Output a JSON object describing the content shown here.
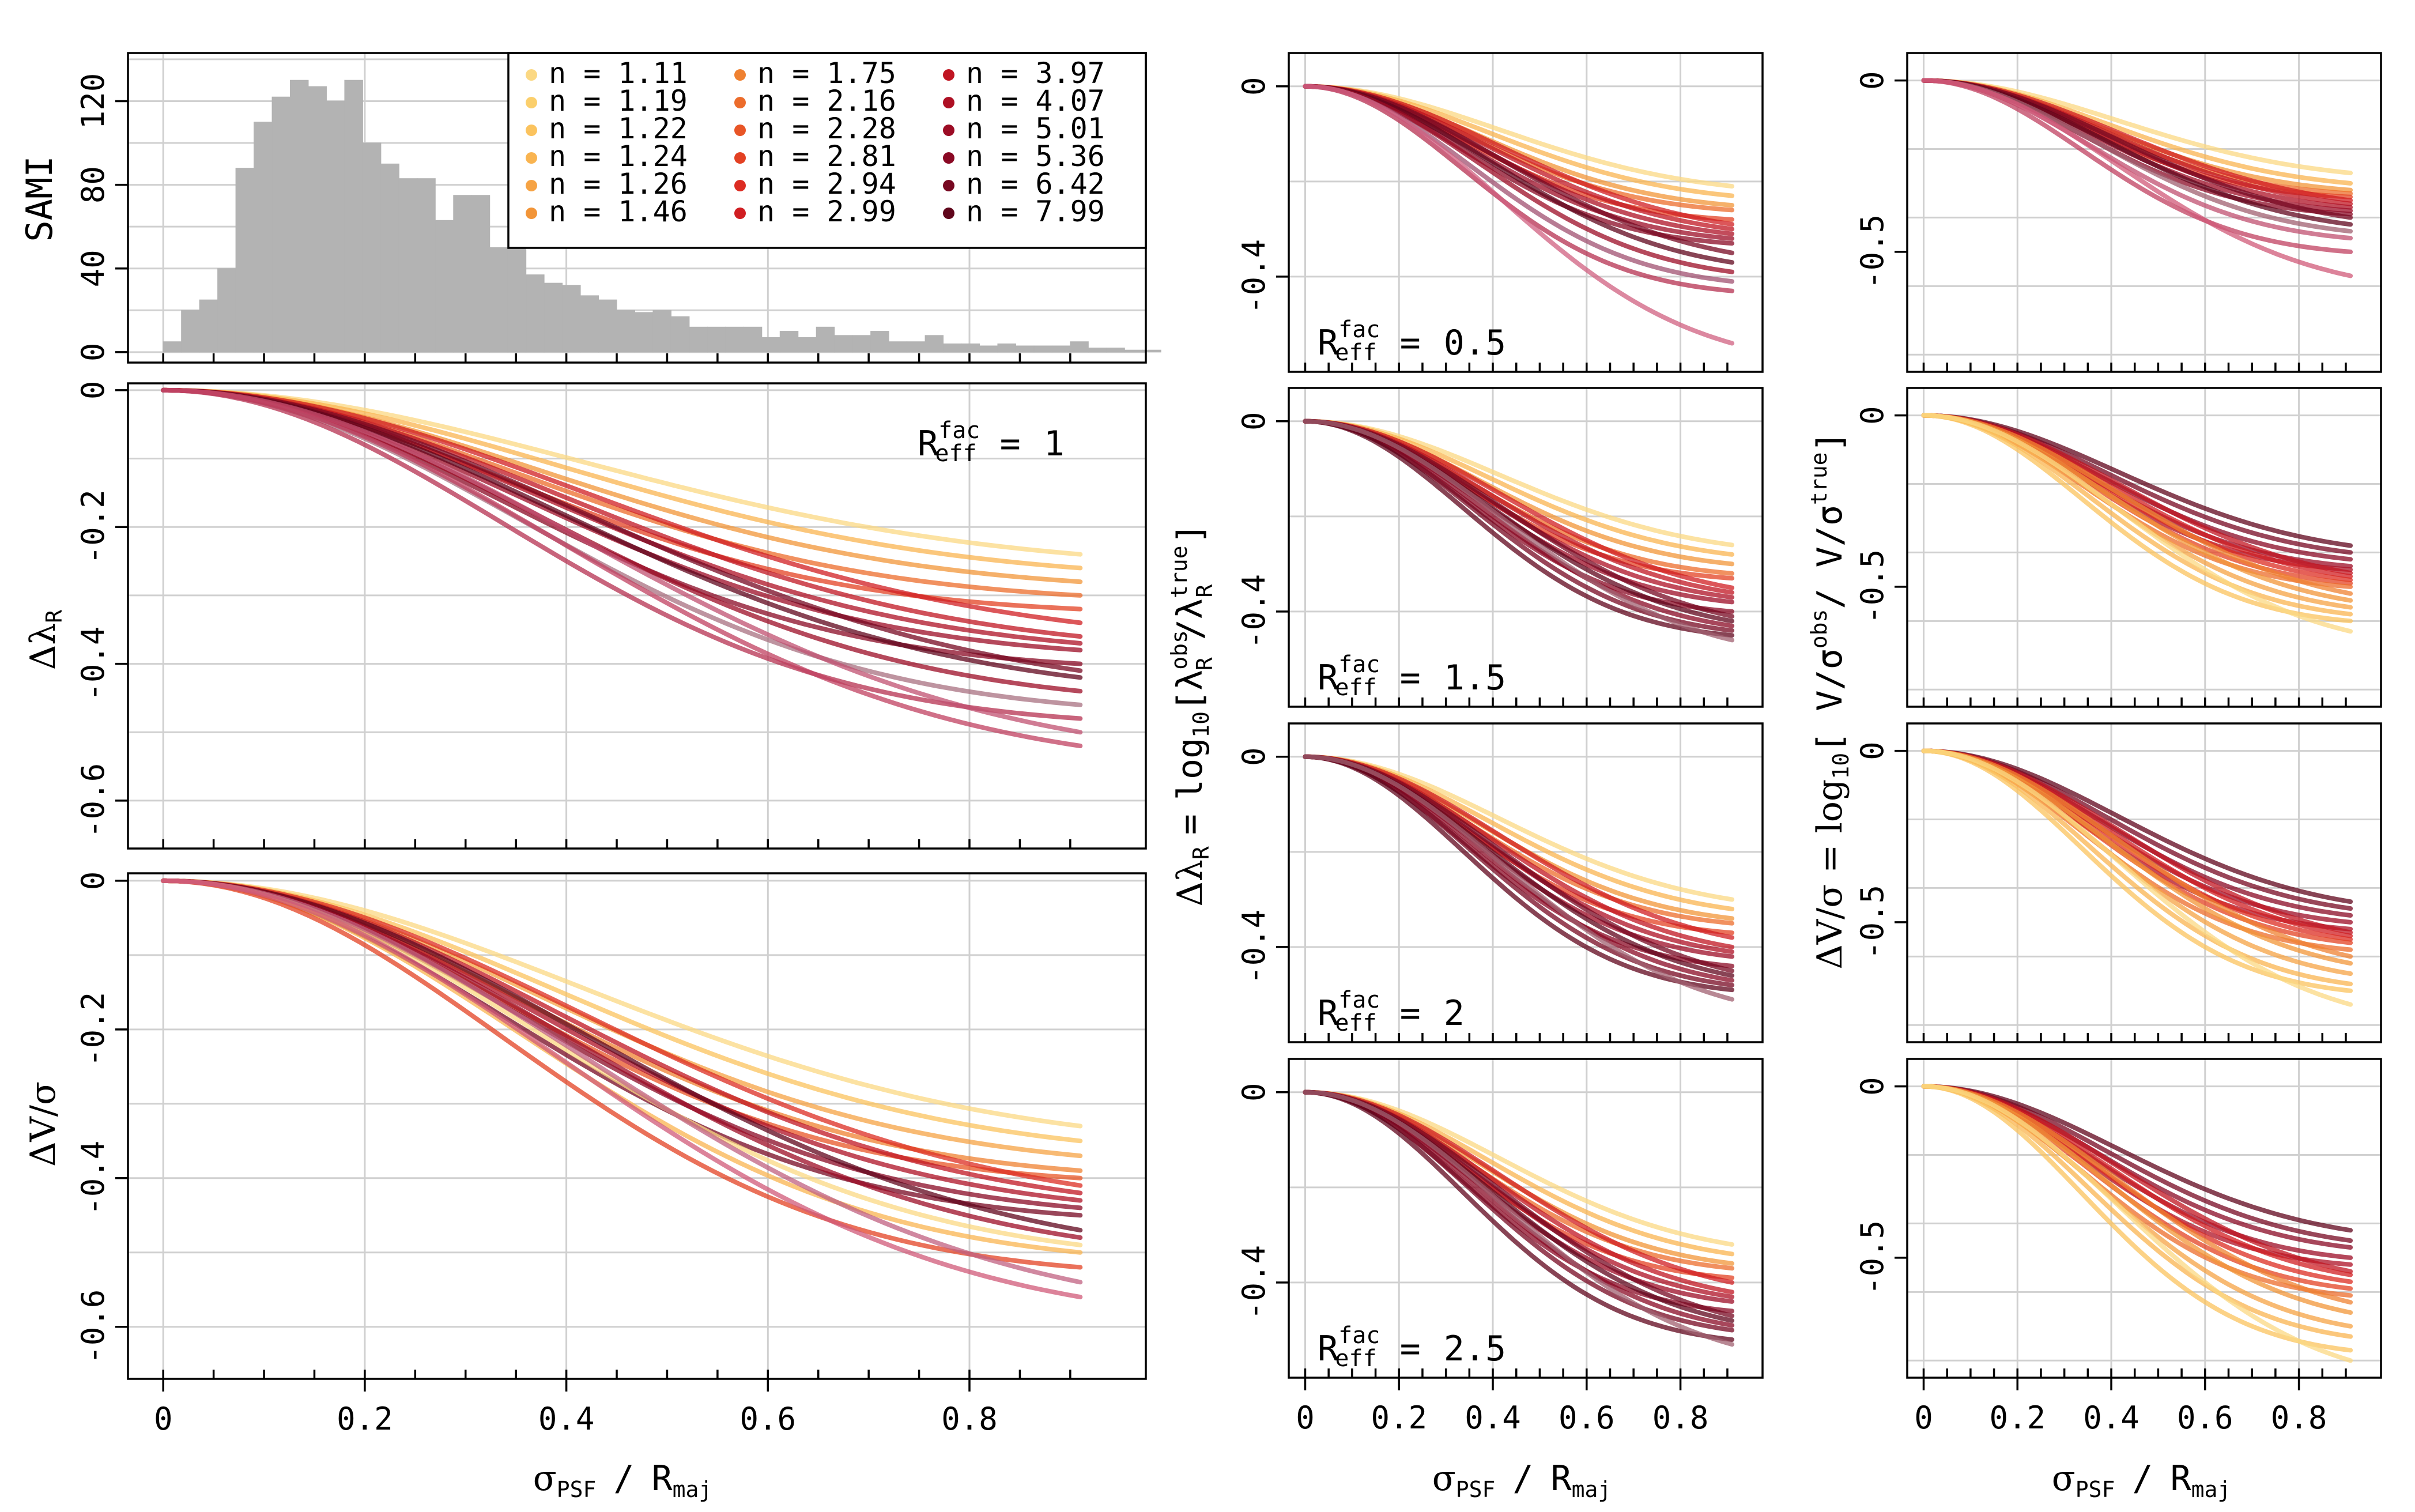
{
  "chart_data": [
    {
      "id": "hist",
      "type": "bar",
      "ylabel": "SAMI",
      "ylim": [
        -5,
        143
      ],
      "xlim": [
        -0.035,
        0.975
      ],
      "yticks": [
        0,
        40,
        80,
        120
      ],
      "grid": true,
      "bin_width": 0.02,
      "bins_start": 0.0,
      "values": [
        5,
        20,
        25,
        40,
        88,
        110,
        122,
        130,
        127,
        120,
        130,
        100,
        90,
        83,
        83,
        63,
        75,
        75,
        50,
        53,
        37,
        33,
        32,
        27,
        25,
        20,
        19,
        20,
        17,
        12,
        12,
        12,
        12,
        7,
        10,
        7,
        12,
        8,
        8,
        10,
        5,
        5,
        8,
        4,
        4,
        3,
        4,
        3,
        3,
        3,
        5,
        2,
        2,
        1,
        1
      ],
      "legend": {
        "position": "top-right",
        "entries": [
          "n =  1.11",
          "n =  1.19",
          "n =  1.22",
          "n =  1.24",
          "n =  1.26",
          "n =  1.46",
          "n =  1.75",
          "n =  2.16",
          "n =  2.28",
          "n =  2.81",
          "n =  2.94",
          "n =  2.99",
          "n =  3.97",
          "n =  4.07",
          "n =  5.01",
          "n =  5.36",
          "n =  6.42",
          "n =  7.99"
        ],
        "colors": [
          "#fbd883",
          "#fbcf6c",
          "#fbc35e",
          "#f9b450",
          "#f6a344",
          "#f29538",
          "#ef8131",
          "#ec6c2b",
          "#e85526",
          "#e34123",
          "#dc2c22",
          "#d01e22",
          "#c01522",
          "#ae1024",
          "#9c0c25",
          "#8a0924",
          "#770821",
          "#60061c"
        ]
      }
    },
    {
      "id": "lambda-main",
      "type": "line",
      "ylabel": "Δλ_R",
      "annotation": "R_eff^fac = 1",
      "annotation_value": "1",
      "xlim": [
        -0.035,
        0.975
      ],
      "ylim": [
        -0.67,
        0.01
      ],
      "yticks": [
        0,
        -0.2,
        -0.4,
        -0.6
      ],
      "ytick_labels": [
        "0",
        "-0.2",
        "-0.4",
        "-0.6"
      ],
      "grid": true,
      "curve_end_x": 0.91,
      "end_values": [
        -0.24,
        -0.26,
        -0.28,
        -0.3,
        -0.32,
        -0.34,
        -0.36,
        -0.37,
        -0.38,
        -0.4,
        -0.41,
        -0.42,
        -0.44,
        -0.46,
        -0.48,
        -0.5,
        -0.52
      ],
      "series_colors": [
        "#fbd883",
        "#f9b450",
        "#f29538",
        "#ec6c2b",
        "#e34123",
        "#d01e22",
        "#c01522",
        "#ae1024",
        "#9c0c25",
        "#8a0924",
        "#770821",
        "#60061c",
        "#9c0c25",
        "#a87080",
        "#b53050",
        "#c05070",
        "#c04060"
      ]
    },
    {
      "id": "vsig-main",
      "type": "line",
      "ylabel": "ΔV/σ",
      "xlabel": "σ_PSF / R_maj",
      "xlim": [
        -0.035,
        0.975
      ],
      "ylim": [
        -0.67,
        0.01
      ],
      "yticks": [
        0,
        -0.2,
        -0.4,
        -0.6
      ],
      "ytick_labels": [
        "0",
        "-0.2",
        "-0.4",
        "-0.6"
      ],
      "xticks": [
        0,
        0.2,
        0.4,
        0.6,
        0.8
      ],
      "xtick_labels": [
        "0",
        "0.2",
        "0.4",
        "0.6",
        "0.8"
      ],
      "grid": true,
      "curve_end_x": 0.91,
      "end_values": [
        -0.33,
        -0.35,
        -0.37,
        -0.39,
        -0.4,
        -0.41,
        -0.42,
        -0.43,
        -0.44,
        -0.45,
        -0.47,
        -0.48,
        -0.49,
        -0.5,
        -0.52,
        -0.54,
        -0.56
      ],
      "series_colors": [
        "#fbd883",
        "#fbc35e",
        "#f6a344",
        "#ef8131",
        "#e85526",
        "#dc2c22",
        "#c01522",
        "#ae1024",
        "#8a0924",
        "#770821",
        "#60061c",
        "#9c0c25",
        "#fbd883",
        "#f9b450",
        "#e34123",
        "#c06080",
        "#d05a78"
      ]
    },
    {
      "id": "lambda-0.5",
      "type": "line",
      "annotation": "R_eff^fac = 0.5",
      "annotation_value": "0.5",
      "xlim": [
        -0.035,
        0.975
      ],
      "ylim": [
        -0.6,
        0.07
      ],
      "yticks": [
        0,
        -0.4
      ],
      "ytick_labels": [
        "0",
        "-0.4"
      ],
      "grid": true,
      "curve_end_x": 0.91,
      "end_values": [
        -0.21,
        -0.23,
        -0.25,
        -0.26,
        -0.28,
        -0.29,
        -0.3,
        -0.31,
        -0.32,
        -0.33,
        -0.35,
        -0.37,
        -0.39,
        -0.41,
        -0.43,
        -0.54
      ],
      "series_colors": [
        "#fbd883",
        "#f9b450",
        "#f29538",
        "#ec6c2b",
        "#e34123",
        "#d01e22",
        "#c01522",
        "#ae1024",
        "#9c0c25",
        "#8a0924",
        "#770821",
        "#60061c",
        "#9c0c25",
        "#a05070",
        "#b53050",
        "#d06080"
      ]
    },
    {
      "id": "lambda-1.5",
      "type": "line",
      "annotation": "R_eff^fac = 1.5",
      "annotation_value": "1.5",
      "xlim": [
        -0.035,
        0.975
      ],
      "ylim": [
        -0.6,
        0.07
      ],
      "yticks": [
        0,
        -0.4
      ],
      "ytick_labels": [
        "0",
        "-0.4"
      ],
      "grid": true,
      "curve_end_x": 0.91,
      "end_values": [
        -0.26,
        -0.28,
        -0.3,
        -0.32,
        -0.33,
        -0.35,
        -0.36,
        -0.37,
        -0.38,
        -0.4,
        -0.41,
        -0.42,
        -0.43,
        -0.44,
        -0.45,
        -0.46
      ],
      "series_colors": [
        "#fbd883",
        "#f9b450",
        "#f29538",
        "#ec6c2b",
        "#e34123",
        "#d01e22",
        "#c01522",
        "#ae1024",
        "#9c0c25",
        "#8a0924",
        "#770821",
        "#60061c",
        "#8a0924",
        "#770821",
        "#60061c",
        "#a06070"
      ]
    },
    {
      "id": "lambda-2",
      "type": "line",
      "annotation": "R_eff^fac = 2",
      "annotation_value": "2",
      "xlim": [
        -0.035,
        0.975
      ],
      "ylim": [
        -0.6,
        0.07
      ],
      "yticks": [
        0,
        -0.4
      ],
      "ytick_labels": [
        "0",
        "-0.4"
      ],
      "grid": true,
      "curve_end_x": 0.91,
      "end_values": [
        -0.3,
        -0.32,
        -0.34,
        -0.35,
        -0.37,
        -0.38,
        -0.4,
        -0.41,
        -0.42,
        -0.44,
        -0.45,
        -0.46,
        -0.47,
        -0.48,
        -0.49,
        -0.51
      ],
      "series_colors": [
        "#fbd883",
        "#f9b450",
        "#f29538",
        "#ec6c2b",
        "#e34123",
        "#d01e22",
        "#c01522",
        "#ae1024",
        "#9c0c25",
        "#8a0924",
        "#770821",
        "#60061c",
        "#8a0924",
        "#770821",
        "#60061c",
        "#a06070"
      ]
    },
    {
      "id": "lambda-2.5",
      "type": "line",
      "annotation": "R_eff^fac = 2.5",
      "annotation_value": "2.5",
      "xlabel": "σ_PSF / R_maj",
      "xlim": [
        -0.035,
        0.975
      ],
      "ylim": [
        -0.6,
        0.07
      ],
      "yticks": [
        0,
        -0.4
      ],
      "ytick_labels": [
        "0",
        "-0.4"
      ],
      "xticks": [
        0,
        0.2,
        0.4,
        0.6,
        0.8
      ],
      "xtick_labels": [
        "0",
        "0.2",
        "0.4",
        "0.6",
        "0.8"
      ],
      "grid": true,
      "curve_end_x": 0.91,
      "end_values": [
        -0.32,
        -0.34,
        -0.36,
        -0.37,
        -0.39,
        -0.4,
        -0.42,
        -0.43,
        -0.44,
        -0.46,
        -0.47,
        -0.48,
        -0.49,
        -0.5,
        -0.52,
        -0.53
      ],
      "series_colors": [
        "#fbd883",
        "#f9b450",
        "#f29538",
        "#ec6c2b",
        "#e34123",
        "#d01e22",
        "#c01522",
        "#ae1024",
        "#9c0c25",
        "#8a0924",
        "#770821",
        "#60061c",
        "#8a0924",
        "#770821",
        "#60061c",
        "#a06070"
      ]
    },
    {
      "id": "vsig-0.5",
      "type": "line",
      "xlim": [
        -0.035,
        0.975
      ],
      "ylim": [
        -0.85,
        0.08
      ],
      "yticks": [
        0,
        -0.5
      ],
      "ytick_labels": [
        "0",
        "-0.5"
      ],
      "grid": true,
      "curve_end_x": 0.91,
      "end_values": [
        -0.27,
        -0.3,
        -0.32,
        -0.33,
        -0.34,
        -0.35,
        -0.36,
        -0.37,
        -0.38,
        -0.39,
        -0.4,
        -0.42,
        -0.44,
        -0.46,
        -0.5,
        -0.57
      ],
      "series_colors": [
        "#fbd883",
        "#f9b450",
        "#f29538",
        "#ec6c2b",
        "#e34123",
        "#d01e22",
        "#c01522",
        "#ae1024",
        "#9c0c25",
        "#8a0924",
        "#770821",
        "#60061c",
        "#a06070",
        "#c05070",
        "#c04060",
        "#d05a78"
      ]
    },
    {
      "id": "vsig-1.5",
      "type": "line",
      "xlim": [
        -0.035,
        0.975
      ],
      "ylim": [
        -0.85,
        0.08
      ],
      "yticks": [
        0,
        -0.5
      ],
      "ytick_labels": [
        "0",
        "-0.5"
      ],
      "grid": true,
      "curve_end_x": 0.91,
      "end_values": [
        -0.38,
        -0.4,
        -0.42,
        -0.44,
        -0.45,
        -0.46,
        -0.47,
        -0.48,
        -0.49,
        -0.5,
        -0.52,
        -0.54,
        -0.56,
        -0.58,
        -0.6,
        -0.63
      ],
      "series_colors": [
        "#60061c",
        "#770821",
        "#8a0924",
        "#9c0c25",
        "#ae1024",
        "#c01522",
        "#d01e22",
        "#dc2c22",
        "#e34123",
        "#ec6c2b",
        "#ef8131",
        "#f29538",
        "#f6a344",
        "#f9b450",
        "#fbc35e",
        "#fbd883"
      ]
    },
    {
      "id": "vsig-2",
      "type": "line",
      "ylabel": "ΔV/σ = log10[ V/σ^obs / V/σ^true ]",
      "xlim": [
        -0.035,
        0.975
      ],
      "ylim": [
        -0.85,
        0.08
      ],
      "yticks": [
        0,
        -0.5
      ],
      "ytick_labels": [
        "0",
        "-0.5"
      ],
      "grid": true,
      "curve_end_x": 0.91,
      "end_values": [
        -0.44,
        -0.46,
        -0.48,
        -0.5,
        -0.52,
        -0.53,
        -0.54,
        -0.55,
        -0.56,
        -0.58,
        -0.6,
        -0.62,
        -0.65,
        -0.68,
        -0.7,
        -0.74
      ],
      "series_colors": [
        "#60061c",
        "#770821",
        "#8a0924",
        "#9c0c25",
        "#ae1024",
        "#c01522",
        "#d01e22",
        "#dc2c22",
        "#e34123",
        "#ec6c2b",
        "#ef8131",
        "#f29538",
        "#f6a344",
        "#f9b450",
        "#fbc35e",
        "#fbd883"
      ]
    },
    {
      "id": "vsig-2.5",
      "type": "line",
      "xlabel": "σ_PSF / R_maj",
      "xlim": [
        -0.035,
        0.975
      ],
      "ylim": [
        -0.85,
        0.08
      ],
      "yticks": [
        0,
        -0.5
      ],
      "ytick_labels": [
        "0",
        "-0.5"
      ],
      "xticks": [
        0,
        0.2,
        0.4,
        0.6,
        0.8
      ],
      "xtick_labels": [
        "0",
        "0.2",
        "0.4",
        "0.6",
        "0.8"
      ],
      "grid": true,
      "curve_end_x": 0.91,
      "end_values": [
        -0.42,
        -0.45,
        -0.47,
        -0.5,
        -0.52,
        -0.54,
        -0.55,
        -0.57,
        -0.59,
        -0.61,
        -0.63,
        -0.66,
        -0.7,
        -0.73,
        -0.77,
        -0.8
      ],
      "series_colors": [
        "#60061c",
        "#770821",
        "#8a0924",
        "#9c0c25",
        "#ae1024",
        "#c01522",
        "#d01e22",
        "#dc2c22",
        "#e34123",
        "#ec6c2b",
        "#ef8131",
        "#f29538",
        "#f6a344",
        "#f9b450",
        "#fbc35e",
        "#fbd883"
      ]
    }
  ],
  "labels": {
    "main_ylabel_hist": "SAMI",
    "lambda_symbol": "Δλ",
    "lambda_sub": "R",
    "vsig_main": "ΔV/σ",
    "xlabel_sigma": "σ",
    "xlabel_psf": "PSF",
    "xlabel_slash": "/",
    "xlabel_R": "R",
    "xlabel_maj": "maj",
    "reff_R": "R",
    "reff_sup": "fac",
    "reff_sub": "eff",
    "reff_eq": "=",
    "mid_ylabel_eq": "=",
    "mid_ylabel_log": "log",
    "mid_ylabel_log_sub": "10",
    "mid_ylabel_open": "[λ",
    "mid_ylabel_obs": "obs",
    "mid_ylabel_R1": "R",
    "mid_ylabel_slash": "/λ",
    "mid_ylabel_true": "true",
    "mid_ylabel_R2": "R",
    "mid_ylabel_close": "]",
    "right_ylabel_pre": "ΔV/σ = log",
    "right_ylabel_sub": "10",
    "right_ylabel_open": "[ V/σ",
    "right_ylabel_obs": "obs",
    "right_ylabel_mid": "/ V/σ",
    "right_ylabel_true": "true",
    "right_ylabel_close": "]"
  }
}
